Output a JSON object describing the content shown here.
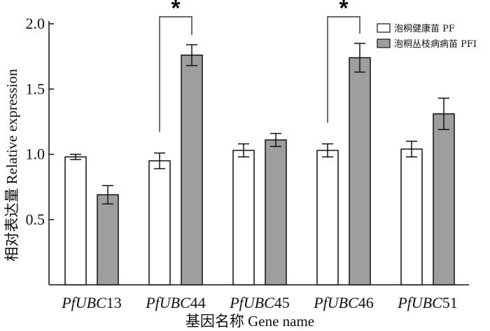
{
  "chart_data": {
    "type": "bar",
    "categories": [
      {
        "prefix": "Pf",
        "italic": "UBC",
        "suffix": "13"
      },
      {
        "prefix": "Pf",
        "italic": "UBC",
        "suffix": "44"
      },
      {
        "prefix": "Pf",
        "italic": "UBC",
        "suffix": "45"
      },
      {
        "prefix": "Pf",
        "italic": "UBC",
        "suffix": "46"
      },
      {
        "prefix": "Pf",
        "italic": "UBC",
        "suffix": "51"
      }
    ],
    "series": [
      {
        "name": "泡桐健康苗 PF",
        "color": "#ffffff",
        "values": [
          0.98,
          0.95,
          1.03,
          1.03,
          1.04
        ],
        "errors": [
          0.02,
          0.06,
          0.05,
          0.05,
          0.06
        ]
      },
      {
        "name": "泡桐丛枝病病苗 PFI",
        "color": "#9e9e9e",
        "values": [
          0.69,
          1.76,
          1.11,
          1.74,
          1.31
        ],
        "errors": [
          0.07,
          0.08,
          0.05,
          0.11,
          0.12
        ]
      }
    ],
    "significance": [
      {
        "category_index": 1,
        "label": "*"
      },
      {
        "category_index": 3,
        "label": "*"
      }
    ],
    "ylim": [
      0,
      2.0
    ],
    "yticks": [
      0.5,
      1.0,
      1.5,
      2.0
    ],
    "ytick_labels": [
      "0.5",
      "1.0",
      "1.5",
      "2.0"
    ],
    "ylabel": "相对表达量  Relative expression",
    "xlabel": "基因名称  Gene name",
    "legend_position": "top-right",
    "grid": false
  }
}
